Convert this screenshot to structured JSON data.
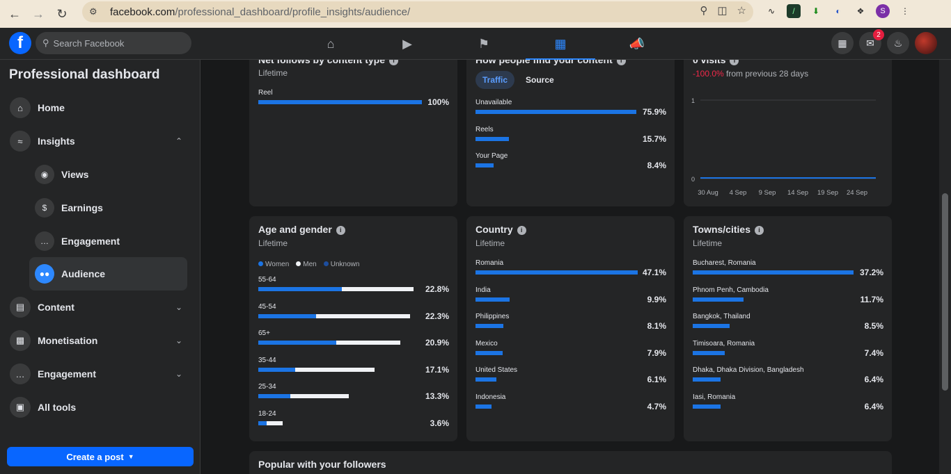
{
  "browser": {
    "url_host": "facebook.com",
    "url_path": "/professional_dashboard/profile_insights/audience/",
    "profile_initial": "S"
  },
  "fbnav": {
    "logo": "f",
    "search_placeholder": "Search Facebook",
    "messenger_badge": "2"
  },
  "sidebar": {
    "title": "Professional dashboard",
    "items": [
      {
        "label": "Home",
        "icon": "home-icon"
      },
      {
        "label": "Insights",
        "icon": "insights-icon"
      },
      {
        "label": "Content",
        "icon": "content-icon"
      },
      {
        "label": "Monetisation",
        "icon": "monetisation-icon"
      },
      {
        "label": "Engagement",
        "icon": "engagement-icon"
      },
      {
        "label": "All tools",
        "icon": "tools-icon"
      }
    ],
    "sub_items": [
      {
        "label": "Views",
        "icon": "eye-icon"
      },
      {
        "label": "Earnings",
        "icon": "dollar-icon"
      },
      {
        "label": "Engagement",
        "icon": "chat-icon"
      },
      {
        "label": "Audience",
        "icon": "people-icon"
      }
    ],
    "create_post": "Create a post"
  },
  "cards": {
    "net_follows": {
      "title": "Net follows by content type",
      "subtitle": "Lifetime",
      "rows": [
        {
          "label": "Reel",
          "value": 100,
          "pct": "100%"
        }
      ]
    },
    "how_find": {
      "title": "How people find your content",
      "tabs": [
        "Traffic",
        "Source"
      ],
      "rows": [
        {
          "label": "Unavailable",
          "value": 75.9,
          "pct": "75.9%"
        },
        {
          "label": "Reels",
          "value": 15.7,
          "pct": "15.7%"
        },
        {
          "label": "Your Page",
          "value": 8.4,
          "pct": "8.4%"
        }
      ]
    },
    "visits": {
      "title": "0 visits",
      "change": "-100.0%",
      "change_text": "from previous 28 days",
      "y_ticks": [
        "1",
        "0"
      ],
      "x_ticks": [
        "30 Aug",
        "4 Sep",
        "9 Sep",
        "14 Sep",
        "19 Sep",
        "24 Sep"
      ]
    },
    "age_gender": {
      "title": "Age and gender",
      "subtitle": "Lifetime",
      "legend": [
        "Women",
        "Men",
        "Unknown"
      ],
      "rows": [
        {
          "label": "55-64",
          "women": 12.3,
          "men": 10.5,
          "pct": "22.8%"
        },
        {
          "label": "45-54",
          "women": 8.5,
          "men": 13.8,
          "pct": "22.3%"
        },
        {
          "label": "65+",
          "women": 11.5,
          "men": 9.4,
          "pct": "20.9%"
        },
        {
          "label": "35-44",
          "women": 5.4,
          "men": 11.7,
          "pct": "17.1%"
        },
        {
          "label": "25-34",
          "women": 4.7,
          "men": 8.6,
          "pct": "13.3%"
        },
        {
          "label": "18-24",
          "women": 1.2,
          "men": 2.4,
          "pct": "3.6%"
        }
      ]
    },
    "country": {
      "title": "Country",
      "subtitle": "Lifetime",
      "rows": [
        {
          "label": "Romania",
          "value": 47.1,
          "pct": "47.1%"
        },
        {
          "label": "India",
          "value": 9.9,
          "pct": "9.9%"
        },
        {
          "label": "Philippines",
          "value": 8.1,
          "pct": "8.1%"
        },
        {
          "label": "Mexico",
          "value": 7.9,
          "pct": "7.9%"
        },
        {
          "label": "United States",
          "value": 6.1,
          "pct": "6.1%"
        },
        {
          "label": "Indonesia",
          "value": 4.7,
          "pct": "4.7%"
        }
      ]
    },
    "towns": {
      "title": "Towns/cities",
      "subtitle": "Lifetime",
      "rows": [
        {
          "label": "Bucharest, Romania",
          "value": 37.2,
          "pct": "37.2%"
        },
        {
          "label": "Phnom Penh, Cambodia",
          "value": 11.7,
          "pct": "11.7%"
        },
        {
          "label": "Bangkok, Thailand",
          "value": 8.5,
          "pct": "8.5%"
        },
        {
          "label": "Timisoara, Romania",
          "value": 7.4,
          "pct": "7.4%"
        },
        {
          "label": "Dhaka, Dhaka Division, Bangladesh",
          "value": 6.4,
          "pct": "6.4%"
        },
        {
          "label": "Iasi, Romania",
          "value": 6.4,
          "pct": "6.4%"
        }
      ]
    },
    "popular": {
      "title": "Popular with your followers"
    }
  },
  "colors": {
    "accent": "#1b74e4",
    "men": "#f0f2f5",
    "negative": "#f02849"
  }
}
